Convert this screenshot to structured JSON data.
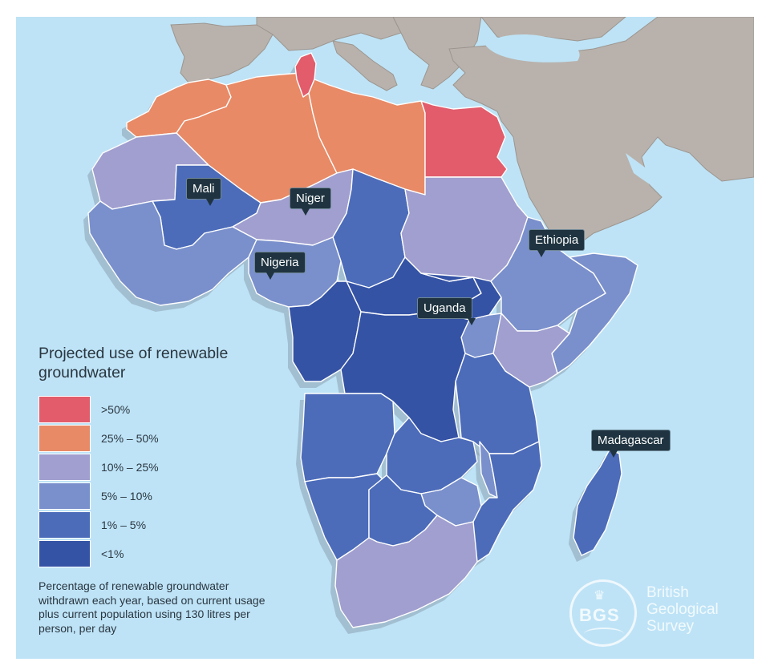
{
  "legend": {
    "title": "Projected use of renewable groundwater",
    "items": [
      {
        "label": ">50%",
        "color": "#e25c6c"
      },
      {
        "label": "25% – 50%",
        "color": "#e88a66"
      },
      {
        "label": "10% – 25%",
        "color": "#a19fcf"
      },
      {
        "label": "5% – 10%",
        "color": "#7a90cc"
      },
      {
        "label": "1% – 5%",
        "color": "#4c6cba"
      },
      {
        "label": "<1%",
        "color": "#3553a5"
      }
    ]
  },
  "caption": "Percentage of renewable groundwater withdrawn each year, based on current usage plus current population using 130 litres per person, per day",
  "callouts": {
    "mali": "Mali",
    "niger": "Niger",
    "nigeria": "Nigeria",
    "ethiopia": "Ethiopia",
    "uganda": "Uganda",
    "madagascar": "Madagascar"
  },
  "logo": {
    "abbr": "BGS",
    "line1": "British",
    "line2": "Geological",
    "line3": "Survey"
  },
  "colors": {
    "sea": "#bee3f6",
    "other_land": "#b9b2ac",
    "callout_bg": "#1f3440"
  },
  "countries": {
    "morocco": ">50%|25% – 50%",
    "categories": {
      "Tunisia": ">50%",
      "Egypt": ">50%",
      "Morocco": "25% – 50%",
      "Algeria": "25% – 50%",
      "Libya": "25% – 50%",
      "Mauritania": "10% – 25%",
      "Niger": "10% – 25%",
      "Sudan": "10% – 25%",
      "Kenya": "10% – 25%",
      "South Africa": "10% – 25%",
      "Nigeria": "5% – 10%",
      "Ethiopia": "5% – 10%",
      "Somalia": "5% – 10%",
      "Uganda": "5% – 10%",
      "Zimbabwe": "5% – 10%",
      "Malawi": "5% – 10%",
      "Mali": "1% – 5%",
      "Chad": "1% – 5%",
      "Tanzania": "1% – 5%",
      "Angola": "1% – 5%",
      "Zambia": "1% – 5%",
      "Mozambique": "1% – 5%",
      "Namibia": "1% – 5%",
      "Botswana": "1% – 5%",
      "Madagascar": "1% – 5%",
      "DR Congo": "<1%",
      "Central African Republic": "<1%",
      "South Sudan": "<1%",
      "Congo": "<1%",
      "Gabon": "<1%"
    }
  }
}
